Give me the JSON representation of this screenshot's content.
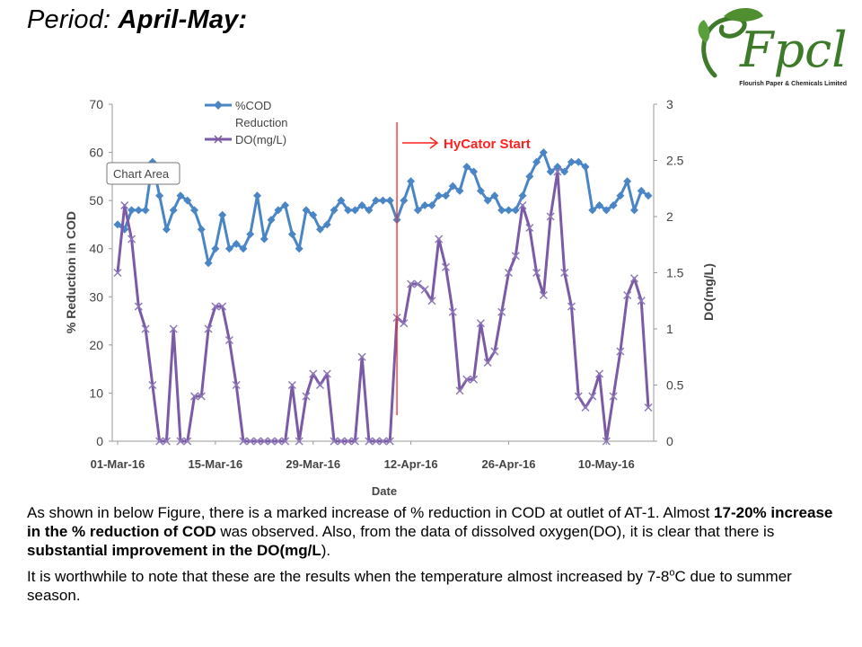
{
  "slide": {
    "title_prefix": "Period: ",
    "title_bold": "April-May:",
    "logo_text": "Fpcl",
    "logo_caption": "Flourish Paper & Chemicals Limited"
  },
  "paragraph1": {
    "t1": "As shown in below Figure, there is a marked increase of % reduction in COD at outlet of AT-1. Almost ",
    "b1": "17-20% increase in the % reduction of COD",
    "t2": " was observed. Also, from the data of dissolved oxygen(DO), it is clear that there is ",
    "b2": "substantial improvement in the DO(mg/L",
    "t3": ")."
  },
  "paragraph2": {
    "t1": "It is worthwhile to note that these are the results when the temperature almost increased by 7-8",
    "sup": "o",
    "t2": "C due to summer season."
  },
  "colors": {
    "cod": "#4a86c5",
    "do": "#7b5aa6",
    "marker_line": "#ff2020",
    "annotation": "#ff2020"
  },
  "chart_data": {
    "type": "line",
    "xlabel": "Date",
    "ylabel": "% Reduction in COD",
    "y2label": "DO(mg/L)",
    "ylim": [
      0,
      70
    ],
    "y2lim": [
      0,
      3
    ],
    "yticks": [
      "0",
      "10",
      "20",
      "30",
      "40",
      "50",
      "60",
      "70"
    ],
    "y2ticks": [
      "0",
      "0.5",
      "1",
      "1.5",
      "2",
      "2.5",
      "3"
    ],
    "xticks": [
      "01-Mar-16",
      "15-Mar-16",
      "29-Mar-16",
      "12-Apr-16",
      "26-Apr-16",
      "10-May-16"
    ],
    "legend": {
      "position": "top-left",
      "cod_label_1": "%COD",
      "cod_label_2": "Reduction",
      "do_label": "DO(mg/L)"
    },
    "chart_area_label": "Chart Area",
    "annotation": {
      "text": "HyCator Start",
      "x": "10-Apr-16"
    },
    "series": [
      {
        "name": "%COD Reduction",
        "axis": "left",
        "x": [
          "01-Mar-16",
          "02-Mar-16",
          "03-Mar-16",
          "04-Mar-16",
          "05-Mar-16",
          "06-Mar-16",
          "07-Mar-16",
          "08-Mar-16",
          "09-Mar-16",
          "10-Mar-16",
          "11-Mar-16",
          "12-Mar-16",
          "13-Mar-16",
          "14-Mar-16",
          "15-Mar-16",
          "16-Mar-16",
          "17-Mar-16",
          "18-Mar-16",
          "19-Mar-16",
          "20-Mar-16",
          "21-Mar-16",
          "22-Mar-16",
          "23-Mar-16",
          "24-Mar-16",
          "25-Mar-16",
          "26-Mar-16",
          "27-Mar-16",
          "28-Mar-16",
          "29-Mar-16",
          "30-Mar-16",
          "31-Mar-16",
          "01-Apr-16",
          "02-Apr-16",
          "03-Apr-16",
          "04-Apr-16",
          "05-Apr-16",
          "06-Apr-16",
          "07-Apr-16",
          "08-Apr-16",
          "09-Apr-16",
          "10-Apr-16",
          "11-Apr-16",
          "12-Apr-16",
          "13-Apr-16",
          "14-Apr-16",
          "15-Apr-16",
          "16-Apr-16",
          "17-Apr-16",
          "18-Apr-16",
          "19-Apr-16",
          "20-Apr-16",
          "21-Apr-16",
          "22-Apr-16",
          "23-Apr-16",
          "24-Apr-16",
          "25-Apr-16",
          "26-Apr-16",
          "27-Apr-16",
          "28-Apr-16",
          "29-Apr-16",
          "30-Apr-16",
          "01-May-16",
          "02-May-16",
          "03-May-16",
          "04-May-16",
          "05-May-16",
          "06-May-16",
          "07-May-16",
          "08-May-16",
          "09-May-16",
          "10-May-16",
          "11-May-16",
          "12-May-16",
          "13-May-16",
          "14-May-16",
          "15-May-16",
          "16-May-16"
        ],
        "values": [
          45,
          44,
          48,
          48,
          48,
          58,
          51,
          44,
          48,
          51,
          50,
          48,
          44,
          37,
          40,
          47,
          40,
          41,
          40,
          43,
          51,
          42,
          46,
          48,
          49,
          43,
          40,
          48,
          47,
          44,
          45,
          48,
          50,
          48,
          48,
          49,
          48,
          50,
          50,
          50,
          46,
          50,
          54,
          48,
          49,
          49,
          51,
          51,
          53,
          52,
          57,
          56,
          52,
          50,
          51,
          48,
          48,
          48,
          51,
          55,
          58,
          60,
          56,
          57,
          56,
          58,
          58,
          57,
          48,
          49,
          48,
          49,
          51,
          54,
          48,
          52,
          51
        ]
      },
      {
        "name": "DO(mg/L)",
        "axis": "right",
        "x": [
          "01-Mar-16",
          "02-Mar-16",
          "03-Mar-16",
          "04-Mar-16",
          "05-Mar-16",
          "06-Mar-16",
          "07-Mar-16",
          "08-Mar-16",
          "09-Mar-16",
          "10-Mar-16",
          "11-Mar-16",
          "12-Mar-16",
          "13-Mar-16",
          "14-Mar-16",
          "15-Mar-16",
          "16-Mar-16",
          "17-Mar-16",
          "18-Mar-16",
          "19-Mar-16",
          "20-Mar-16",
          "21-Mar-16",
          "22-Mar-16",
          "23-Mar-16",
          "24-Mar-16",
          "25-Mar-16",
          "26-Mar-16",
          "27-Mar-16",
          "28-Mar-16",
          "29-Mar-16",
          "30-Mar-16",
          "31-Mar-16",
          "01-Apr-16",
          "02-Apr-16",
          "03-Apr-16",
          "04-Apr-16",
          "05-Apr-16",
          "06-Apr-16",
          "07-Apr-16",
          "08-Apr-16",
          "09-Apr-16",
          "10-Apr-16",
          "11-Apr-16",
          "12-Apr-16",
          "13-Apr-16",
          "14-Apr-16",
          "15-Apr-16",
          "16-Apr-16",
          "17-Apr-16",
          "18-Apr-16",
          "19-Apr-16",
          "20-Apr-16",
          "21-Apr-16",
          "22-Apr-16",
          "23-Apr-16",
          "24-Apr-16",
          "25-Apr-16",
          "26-Apr-16",
          "27-Apr-16",
          "28-Apr-16",
          "29-Apr-16",
          "30-Apr-16",
          "01-May-16",
          "02-May-16",
          "03-May-16",
          "04-May-16",
          "05-May-16",
          "06-May-16",
          "07-May-16",
          "08-May-16",
          "09-May-16",
          "10-May-16",
          "11-May-16",
          "12-May-16",
          "13-May-16",
          "14-May-16",
          "15-May-16",
          "16-May-16"
        ],
        "values": [
          1.5,
          2.1,
          1.8,
          1.2,
          1.0,
          0.5,
          0.0,
          0.0,
          1.0,
          0.0,
          0.0,
          0.4,
          0.4,
          1.0,
          1.2,
          1.2,
          0.9,
          0.5,
          0.0,
          0.0,
          0.0,
          0.0,
          0.0,
          0.0,
          0.0,
          0.5,
          0.0,
          0.4,
          0.6,
          0.5,
          0.6,
          0.0,
          0.0,
          0.0,
          0.0,
          0.75,
          0.0,
          0.0,
          0.0,
          0.0,
          1.1,
          1.05,
          1.4,
          1.4,
          1.35,
          1.25,
          1.8,
          1.55,
          1.15,
          0.45,
          0.55,
          0.55,
          1.05,
          0.7,
          0.8,
          1.15,
          1.5,
          1.65,
          2.1,
          1.9,
          1.5,
          1.3,
          2.0,
          2.4,
          1.5,
          1.2,
          0.4,
          0.3,
          0.4,
          0.6,
          0.0,
          0.4,
          0.8,
          1.3,
          1.45,
          1.25,
          0.3
        ]
      }
    ]
  }
}
